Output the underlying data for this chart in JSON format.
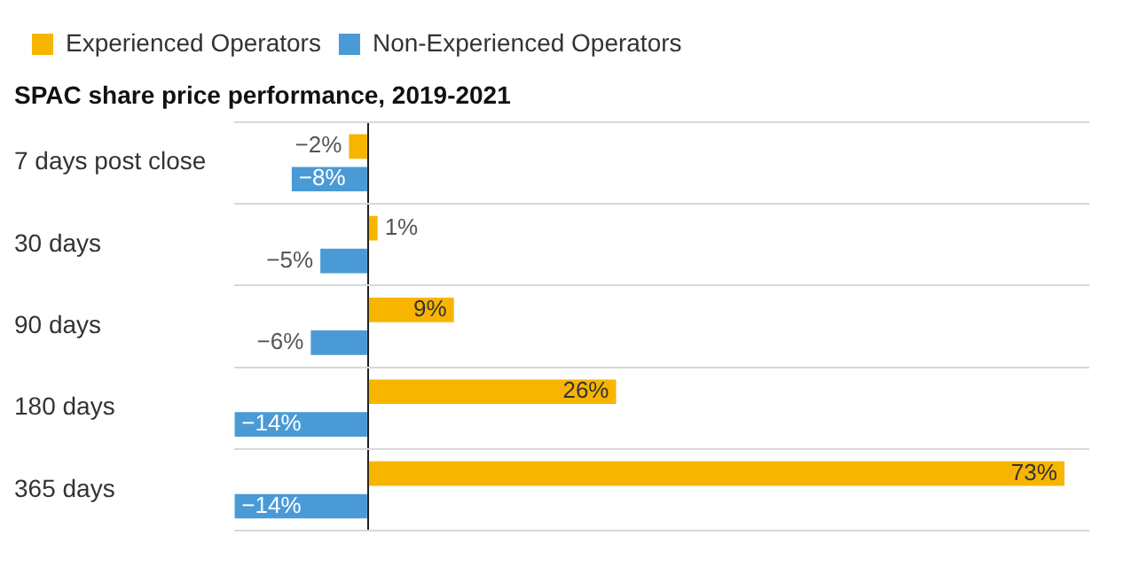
{
  "chart_data": {
    "type": "bar",
    "orientation": "horizontal",
    "title": "SPAC share price performance, 2019-2021",
    "categories": [
      "7 days post close",
      "30 days",
      "90 days",
      "180 days",
      "365 days"
    ],
    "series": [
      {
        "name": "Experienced Operators",
        "color": "#f7b500",
        "values": [
          -2,
          1,
          9,
          26,
          73
        ],
        "value_labels": [
          "−2%",
          "1%",
          "9%",
          "26%",
          "73%"
        ]
      },
      {
        "name": "Non-Experienced Operators",
        "color": "#4a9ad6",
        "values": [
          -8,
          -5,
          -6,
          -14,
          -14
        ],
        "value_labels": [
          "−8%",
          "−5%",
          "−6%",
          "−14%",
          "−14%"
        ]
      }
    ],
    "legend": "top left",
    "grid": "y",
    "tick_labels": "y"
  }
}
